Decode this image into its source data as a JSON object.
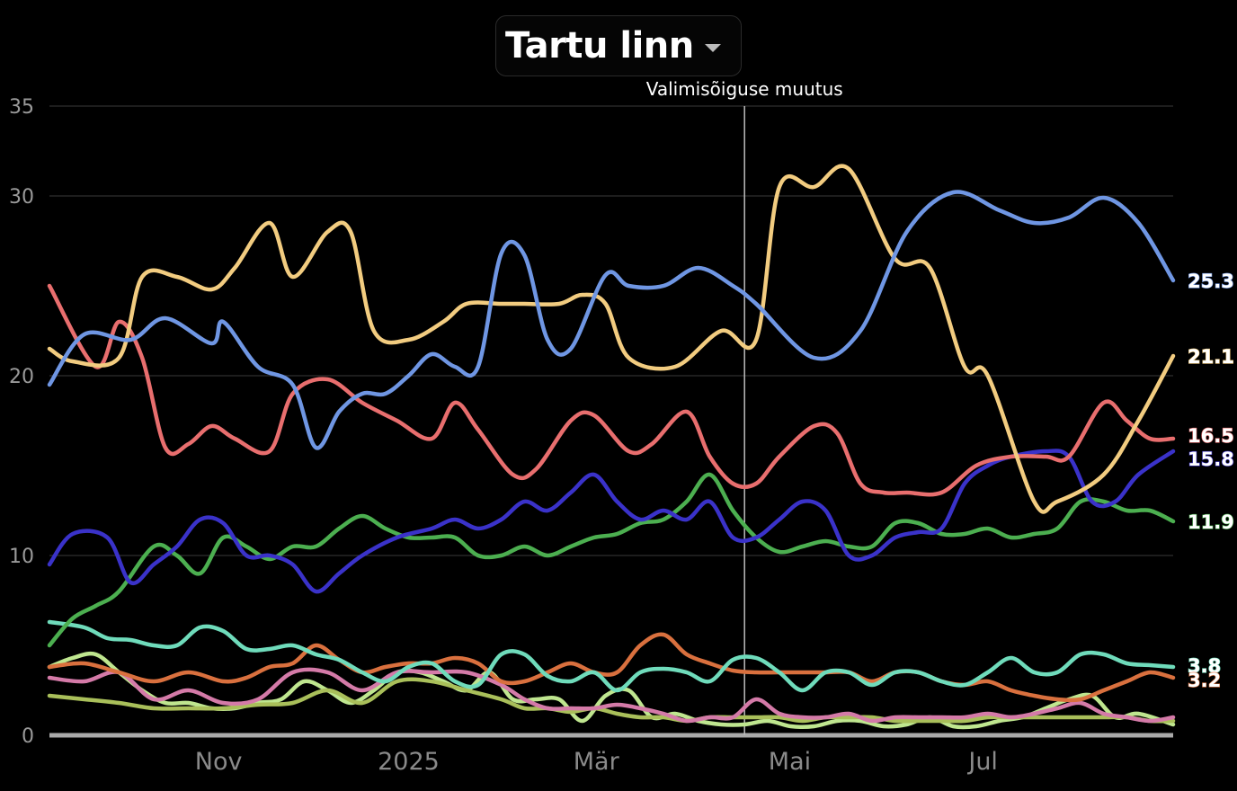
{
  "header": {
    "title": "Tartu linn",
    "dropdown_icon": "chevron-down-icon"
  },
  "annotation": {
    "label": "Valimisõiguse muutus",
    "x": 2025.29
  },
  "chart_data": {
    "type": "line",
    "x_unit": "decimal year",
    "xlim": [
      2024.69,
      2025.66
    ],
    "ylim": [
      0,
      35
    ],
    "yticks": [
      0,
      10,
      20,
      30,
      35
    ],
    "ytick_labels": [
      "0",
      "10",
      "20",
      "30",
      "35"
    ],
    "xticks": [
      2024.836,
      2025.0,
      2025.162,
      2025.329,
      2025.496
    ],
    "xtick_labels": [
      "Nov",
      "2025",
      "Mär",
      "Mai",
      "Jul"
    ],
    "grid": true,
    "series": [
      {
        "color": "#6f96e3",
        "end_label": "25.3",
        "x": [
          2024.69,
          2024.72,
          2024.76,
          2024.79,
          2024.83,
          2024.84,
          2024.87,
          2024.9,
          2024.92,
          2024.94,
          2024.96,
          2024.98,
          2025.0,
          2025.02,
          2025.04,
          2025.06,
          2025.08,
          2025.1,
          2025.12,
          2025.14,
          2025.17,
          2025.19,
          2025.22,
          2025.25,
          2025.28,
          2025.3,
          2025.35,
          2025.39,
          2025.43,
          2025.47,
          2025.51,
          2025.54,
          2025.57,
          2025.6,
          2025.63,
          2025.66
        ],
        "y": [
          19.5,
          22.3,
          22.0,
          23.2,
          21.8,
          23.0,
          20.5,
          19.5,
          16.0,
          18.0,
          19.0,
          19.0,
          20.0,
          21.2,
          20.5,
          20.5,
          26.8,
          26.7,
          22.0,
          21.5,
          25.6,
          25.0,
          25.0,
          26.0,
          25.0,
          24.0,
          21.0,
          22.5,
          28.0,
          30.2,
          29.2,
          28.5,
          28.8,
          29.9,
          28.5,
          25.3
        ]
      },
      {
        "color": "#f2cc80",
        "end_label": "21.1",
        "x": [
          2024.69,
          2024.71,
          2024.75,
          2024.77,
          2024.8,
          2024.83,
          2024.85,
          2024.88,
          2024.9,
          2024.93,
          2024.95,
          2024.97,
          2025.0,
          2025.03,
          2025.05,
          2025.08,
          2025.1,
          2025.13,
          2025.15,
          2025.17,
          2025.19,
          2025.23,
          2025.27,
          2025.3,
          2025.32,
          2025.35,
          2025.38,
          2025.42,
          2025.45,
          2025.48,
          2025.5,
          2025.54,
          2025.56,
          2025.6,
          2025.63,
          2025.66
        ],
        "y": [
          21.5,
          20.8,
          21.0,
          25.5,
          25.5,
          24.8,
          26.0,
          28.5,
          25.5,
          28.0,
          28.0,
          22.5,
          22.0,
          23.0,
          24.0,
          24.0,
          24.0,
          24.0,
          24.5,
          24.0,
          21.0,
          20.5,
          22.5,
          22.0,
          30.5,
          30.5,
          31.5,
          26.5,
          26.0,
          20.5,
          20.0,
          13.0,
          13.0,
          14.5,
          17.5,
          21.1
        ]
      },
      {
        "color": "#e86e6e",
        "end_label": "16.5",
        "x": [
          2024.69,
          2024.73,
          2024.75,
          2024.77,
          2024.79,
          2024.81,
          2024.83,
          2024.85,
          2024.88,
          2024.9,
          2024.93,
          2024.96,
          2024.99,
          2025.02,
          2025.04,
          2025.06,
          2025.09,
          2025.11,
          2025.14,
          2025.16,
          2025.19,
          2025.21,
          2025.24,
          2025.26,
          2025.28,
          2025.3,
          2025.32,
          2025.35,
          2025.37,
          2025.39,
          2025.41,
          2025.43,
          2025.46,
          2025.49,
          2025.52,
          2025.55,
          2025.57,
          2025.6,
          2025.62,
          2025.64,
          2025.66
        ],
        "y": [
          25.0,
          20.5,
          23.0,
          21.0,
          16.0,
          16.2,
          17.2,
          16.5,
          15.8,
          19.0,
          19.8,
          18.5,
          17.5,
          16.5,
          18.5,
          17.0,
          14.5,
          14.8,
          17.5,
          17.8,
          15.8,
          16.2,
          18.0,
          15.5,
          14.0,
          14.0,
          15.5,
          17.2,
          16.8,
          14.0,
          13.5,
          13.5,
          13.5,
          15.0,
          15.5,
          15.5,
          15.5,
          18.5,
          17.5,
          16.5,
          16.5
        ]
      },
      {
        "color": "#3a32c9",
        "end_label": "15.8",
        "x": [
          2024.69,
          2024.71,
          2024.74,
          2024.76,
          2024.78,
          2024.8,
          2024.82,
          2024.84,
          2024.86,
          2024.88,
          2024.9,
          2024.92,
          2024.94,
          2024.96,
          2024.99,
          2025.02,
          2025.04,
          2025.06,
          2025.08,
          2025.1,
          2025.12,
          2025.14,
          2025.16,
          2025.18,
          2025.2,
          2025.22,
          2025.24,
          2025.26,
          2025.28,
          2025.3,
          2025.32,
          2025.34,
          2025.36,
          2025.38,
          2025.4,
          2025.42,
          2025.44,
          2025.46,
          2025.48,
          2025.5,
          2025.52,
          2025.55,
          2025.57,
          2025.59,
          2025.61,
          2025.63,
          2025.66
        ],
        "y": [
          9.5,
          11.2,
          11.0,
          8.5,
          9.5,
          10.5,
          12.0,
          11.8,
          10.0,
          10.0,
          9.5,
          8.0,
          9.0,
          10.0,
          11.0,
          11.5,
          12.0,
          11.5,
          12.0,
          13.0,
          12.5,
          13.5,
          14.5,
          13.0,
          12.0,
          12.5,
          12.0,
          13.0,
          11.0,
          11.0,
          12.0,
          13.0,
          12.5,
          10.0,
          10.0,
          11.0,
          11.3,
          11.5,
          14.0,
          15.0,
          15.5,
          15.8,
          15.5,
          13.0,
          13.0,
          14.5,
          15.8
        ]
      },
      {
        "color": "#4caf50",
        "end_label": "11.9",
        "x": [
          2024.69,
          2024.71,
          2024.73,
          2024.75,
          2024.78,
          2024.8,
          2024.82,
          2024.84,
          2024.86,
          2024.88,
          2024.9,
          2024.92,
          2024.94,
          2024.96,
          2024.98,
          2025.0,
          2025.02,
          2025.04,
          2025.06,
          2025.08,
          2025.1,
          2025.12,
          2025.14,
          2025.16,
          2025.18,
          2025.2,
          2025.22,
          2025.24,
          2025.26,
          2025.28,
          2025.3,
          2025.32,
          2025.34,
          2025.36,
          2025.38,
          2025.4,
          2025.42,
          2025.44,
          2025.46,
          2025.48,
          2025.5,
          2025.52,
          2025.54,
          2025.56,
          2025.58,
          2025.6,
          2025.62,
          2025.64,
          2025.66
        ],
        "y": [
          5.0,
          6.5,
          7.2,
          8.0,
          10.5,
          10.0,
          9.0,
          11.0,
          10.5,
          9.8,
          10.5,
          10.5,
          11.5,
          12.2,
          11.5,
          11.0,
          11.0,
          11.0,
          10.0,
          10.0,
          10.5,
          10.0,
          10.5,
          11.0,
          11.2,
          11.8,
          12.0,
          13.0,
          14.5,
          12.5,
          11.0,
          10.2,
          10.5,
          10.8,
          10.5,
          10.5,
          11.8,
          11.8,
          11.2,
          11.2,
          11.5,
          11.0,
          11.2,
          11.5,
          13.0,
          13.0,
          12.5,
          12.5,
          11.9
        ]
      },
      {
        "color": "#6fdbbb",
        "end_label": "3.8",
        "x": [
          2024.69,
          2024.72,
          2024.74,
          2024.76,
          2024.78,
          2024.8,
          2024.82,
          2024.84,
          2024.86,
          2024.88,
          2024.9,
          2024.92,
          2024.94,
          2024.96,
          2024.98,
          2025.0,
          2025.02,
          2025.04,
          2025.06,
          2025.08,
          2025.1,
          2025.12,
          2025.14,
          2025.16,
          2025.18,
          2025.2,
          2025.22,
          2025.24,
          2025.26,
          2025.28,
          2025.3,
          2025.32,
          2025.34,
          2025.36,
          2025.38,
          2025.4,
          2025.42,
          2025.44,
          2025.46,
          2025.48,
          2025.5,
          2025.52,
          2025.54,
          2025.56,
          2025.58,
          2025.6,
          2025.62,
          2025.64,
          2025.66
        ],
        "y": [
          6.3,
          6.0,
          5.4,
          5.3,
          5.0,
          5.0,
          6.0,
          5.8,
          4.8,
          4.8,
          5.0,
          4.5,
          4.2,
          3.5,
          3.0,
          3.8,
          4.0,
          3.0,
          2.8,
          4.5,
          4.5,
          3.3,
          3.0,
          3.5,
          2.5,
          3.5,
          3.7,
          3.5,
          3.0,
          4.2,
          4.3,
          3.5,
          2.5,
          3.5,
          3.5,
          2.8,
          3.5,
          3.5,
          3.0,
          2.8,
          3.5,
          4.3,
          3.5,
          3.5,
          4.5,
          4.5,
          4.0,
          3.9,
          3.8
        ]
      },
      {
        "color": "#d9703e",
        "end_label": "3.2",
        "x": [
          2024.69,
          2024.72,
          2024.75,
          2024.78,
          2024.81,
          2024.84,
          2024.86,
          2024.88,
          2024.9,
          2024.92,
          2024.94,
          2024.96,
          2024.98,
          2025.0,
          2025.02,
          2025.04,
          2025.06,
          2025.08,
          2025.1,
          2025.12,
          2025.14,
          2025.16,
          2025.18,
          2025.2,
          2025.22,
          2025.24,
          2025.26,
          2025.28,
          2025.3,
          2025.32,
          2025.34,
          2025.36,
          2025.38,
          2025.4,
          2025.42,
          2025.44,
          2025.46,
          2025.48,
          2025.5,
          2025.52,
          2025.54,
          2025.56,
          2025.58,
          2025.6,
          2025.62,
          2025.64,
          2025.66
        ],
        "y": [
          3.8,
          4.0,
          3.5,
          3.0,
          3.5,
          3.0,
          3.2,
          3.8,
          4.0,
          5.0,
          4.2,
          3.5,
          3.8,
          4.0,
          4.0,
          4.3,
          4.0,
          3.0,
          3.0,
          3.5,
          4.0,
          3.5,
          3.5,
          5.0,
          5.6,
          4.5,
          4.0,
          3.6,
          3.5,
          3.5,
          3.5,
          3.5,
          3.5,
          3.0,
          3.5,
          3.5,
          3.0,
          2.8,
          3.0,
          2.5,
          2.2,
          2.0,
          2.0,
          2.5,
          3.0,
          3.5,
          3.2
        ]
      },
      {
        "color": "#d47aa8",
        "end_label": "",
        "x": [
          2024.69,
          2024.72,
          2024.75,
          2024.78,
          2024.81,
          2024.84,
          2024.87,
          2024.9,
          2024.93,
          2024.96,
          2024.99,
          2025.02,
          2025.05,
          2025.08,
          2025.1,
          2025.12,
          2025.14,
          2025.16,
          2025.18,
          2025.2,
          2025.22,
          2025.24,
          2025.26,
          2025.28,
          2025.3,
          2025.32,
          2025.34,
          2025.36,
          2025.38,
          2025.4,
          2025.42,
          2025.44,
          2025.46,
          2025.48,
          2025.5,
          2025.52,
          2025.54,
          2025.56,
          2025.58,
          2025.6,
          2025.62,
          2025.64,
          2025.66
        ],
        "y": [
          3.2,
          3.0,
          3.5,
          2.0,
          2.5,
          1.8,
          2.0,
          3.5,
          3.5,
          2.5,
          3.5,
          3.5,
          3.5,
          2.8,
          2.0,
          1.5,
          1.5,
          1.5,
          1.7,
          1.5,
          1.2,
          0.8,
          1.0,
          1.0,
          2.0,
          1.2,
          1.0,
          1.0,
          1.2,
          0.8,
          1.0,
          1.0,
          1.0,
          1.0,
          1.2,
          1.0,
          1.2,
          1.5,
          1.8,
          1.2,
          1.0,
          0.8,
          1.0
        ]
      },
      {
        "color": "#a9bf5a",
        "end_label": "",
        "x": [
          2024.69,
          2024.72,
          2024.75,
          2024.78,
          2024.81,
          2024.84,
          2024.87,
          2024.9,
          2024.93,
          2024.96,
          2024.99,
          2025.02,
          2025.05,
          2025.08,
          2025.1,
          2025.12,
          2025.14,
          2025.16,
          2025.18,
          2025.2,
          2025.22,
          2025.24,
          2025.26,
          2025.28,
          2025.3,
          2025.32,
          2025.34,
          2025.36,
          2025.38,
          2025.4,
          2025.42,
          2025.44,
          2025.46,
          2025.48,
          2025.5,
          2025.52,
          2025.54,
          2025.56,
          2025.58,
          2025.6,
          2025.62,
          2025.64,
          2025.66
        ],
        "y": [
          2.2,
          2.0,
          1.8,
          1.5,
          1.5,
          1.5,
          1.7,
          1.8,
          2.5,
          1.8,
          3.0,
          3.0,
          2.5,
          2.0,
          1.5,
          1.5,
          1.3,
          1.5,
          1.2,
          1.0,
          1.0,
          0.8,
          1.0,
          1.0,
          1.0,
          1.0,
          0.8,
          1.0,
          1.0,
          1.0,
          0.8,
          0.8,
          0.8,
          0.8,
          1.0,
          1.0,
          1.0,
          1.0,
          1.0,
          1.0,
          1.0,
          0.8,
          0.8
        ]
      },
      {
        "color": "#bfe68f",
        "end_label": "",
        "x": [
          2024.69,
          2024.71,
          2024.73,
          2024.75,
          2024.77,
          2024.79,
          2024.81,
          2024.83,
          2024.85,
          2024.87,
          2024.89,
          2024.91,
          2024.93,
          2024.95,
          2024.97,
          2024.99,
          2025.01,
          2025.03,
          2025.05,
          2025.07,
          2025.09,
          2025.11,
          2025.13,
          2025.15,
          2025.17,
          2025.19,
          2025.21,
          2025.23,
          2025.25,
          2025.27,
          2025.29,
          2025.31,
          2025.33,
          2025.35,
          2025.37,
          2025.39,
          2025.41,
          2025.43,
          2025.45,
          2025.47,
          2025.49,
          2025.51,
          2025.53,
          2025.55,
          2025.57,
          2025.59,
          2025.61,
          2025.63,
          2025.66
        ],
        "y": [
          3.8,
          4.3,
          4.5,
          3.5,
          2.5,
          1.8,
          1.8,
          1.5,
          1.5,
          1.8,
          2.0,
          3.0,
          2.5,
          1.8,
          2.5,
          3.5,
          3.5,
          3.0,
          2.5,
          3.5,
          2.0,
          2.0,
          2.0,
          0.8,
          2.2,
          2.5,
          1.0,
          1.2,
          0.8,
          0.6,
          0.6,
          0.8,
          0.5,
          0.5,
          0.8,
          0.8,
          0.5,
          0.6,
          1.0,
          0.5,
          0.5,
          0.8,
          1.0,
          1.5,
          2.0,
          2.2,
          1.0,
          1.2,
          0.6
        ]
      }
    ]
  }
}
